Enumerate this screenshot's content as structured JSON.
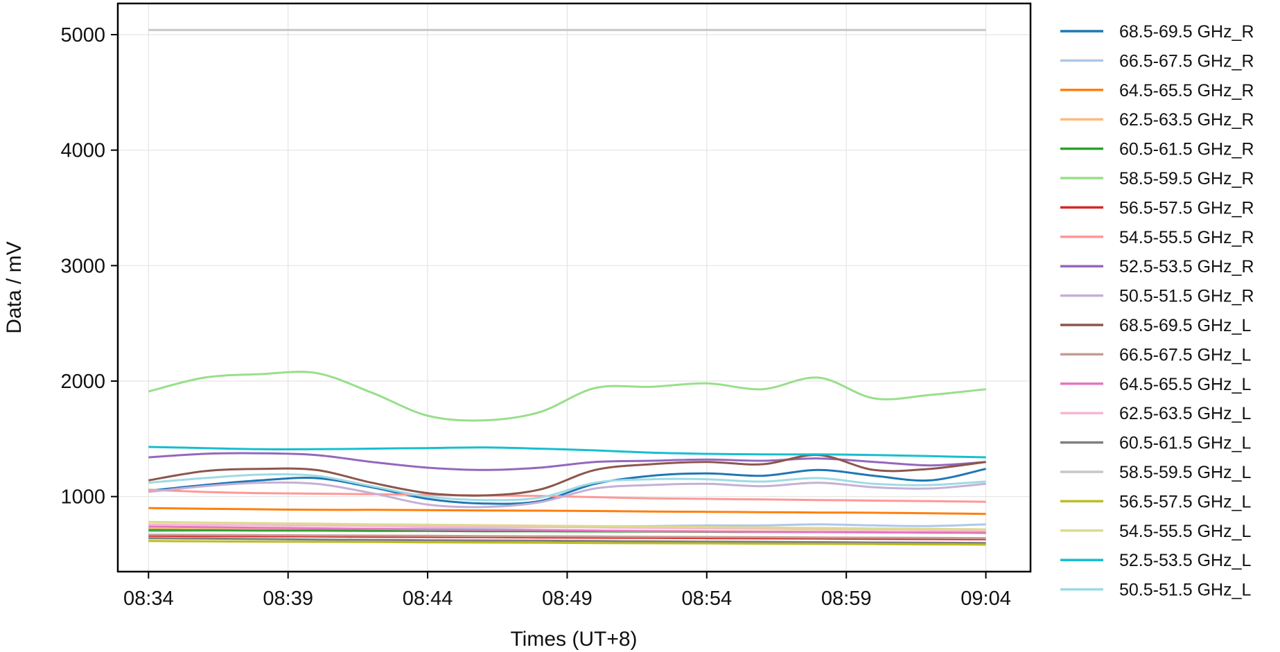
{
  "chart_data": {
    "type": "line",
    "title": "",
    "xlabel": "Times (UT+8)",
    "ylabel": "Data / mV",
    "x_ticks": [
      "08:34",
      "08:39",
      "08:44",
      "08:49",
      "08:54",
      "08:59",
      "09:04"
    ],
    "x_tick_minutes": [
      0,
      5,
      10,
      15,
      20,
      25,
      30
    ],
    "xlim_minutes": [
      -1.1,
      31.6
    ],
    "x": [
      "08:34",
      "08:36",
      "08:38",
      "08:40",
      "08:42",
      "08:44",
      "08:46",
      "08:48",
      "08:50",
      "08:52",
      "08:54",
      "08:56",
      "08:58",
      "09:00",
      "09:02",
      "09:04"
    ],
    "y_ticks": [
      1000,
      2000,
      3000,
      4000,
      5000
    ],
    "ylim": [
      350,
      5270
    ],
    "grid": true,
    "legend_position": "right, outside plot area",
    "series": [
      {
        "name": "68.5-69.5 GHz_R",
        "color": "#1f77b4",
        "values": [
          1050,
          1100,
          1140,
          1160,
          1080,
          980,
          940,
          960,
          1110,
          1180,
          1200,
          1180,
          1230,
          1180,
          1140,
          1240
        ]
      },
      {
        "name": "66.5-67.5 GHz_R",
        "color": "#aec7e8",
        "values": [
          700,
          705,
          710,
          715,
          720,
          725,
          730,
          735,
          740,
          745,
          750,
          750,
          760,
          750,
          745,
          760
        ]
      },
      {
        "name": "64.5-65.5 GHz_R",
        "color": "#ff7f0e",
        "values": [
          900,
          895,
          890,
          885,
          885,
          882,
          880,
          878,
          875,
          870,
          868,
          865,
          862,
          860,
          855,
          850
        ]
      },
      {
        "name": "62.5-63.5 GHz_R",
        "color": "#ffbb78",
        "values": [
          720,
          718,
          716,
          714,
          712,
          710,
          708,
          706,
          704,
          702,
          700,
          698,
          696,
          694,
          692,
          690
        ]
      },
      {
        "name": "60.5-61.5 GHz_R",
        "color": "#2ca02c",
        "values": [
          710,
          708,
          706,
          705,
          703,
          702,
          700,
          699,
          698,
          697,
          695,
          693,
          692,
          690,
          688,
          686
        ]
      },
      {
        "name": "58.5-59.5 GHz_R",
        "color": "#98df8a",
        "values": [
          1910,
          2030,
          2060,
          2070,
          1900,
          1700,
          1660,
          1730,
          1940,
          1950,
          1980,
          1930,
          2030,
          1850,
          1880,
          1930
        ]
      },
      {
        "name": "56.5-57.5 GHz_R",
        "color": "#d62728",
        "values": [
          660,
          658,
          656,
          654,
          652,
          650,
          648,
          646,
          644,
          642,
          640,
          638,
          636,
          634,
          632,
          630
        ]
      },
      {
        "name": "54.5-55.5 GHz_R",
        "color": "#ff9896",
        "values": [
          1060,
          1040,
          1030,
          1025,
          1020,
          1015,
          1010,
          1005,
          995,
          985,
          980,
          975,
          970,
          965,
          960,
          955
        ]
      },
      {
        "name": "52.5-53.5 GHz_R",
        "color": "#9467bd",
        "values": [
          1340,
          1370,
          1375,
          1360,
          1300,
          1250,
          1230,
          1250,
          1300,
          1310,
          1320,
          1310,
          1330,
          1300,
          1270,
          1300
        ]
      },
      {
        "name": "50.5-51.5 GHz_R",
        "color": "#c5b0d5",
        "values": [
          1040,
          1090,
          1120,
          1110,
          1030,
          930,
          910,
          950,
          1070,
          1100,
          1110,
          1090,
          1120,
          1080,
          1070,
          1110
        ]
      },
      {
        "name": "68.5-69.5 GHz_L",
        "color": "#8c564b",
        "values": [
          1140,
          1220,
          1240,
          1230,
          1120,
          1030,
          1010,
          1060,
          1230,
          1280,
          1300,
          1280,
          1360,
          1230,
          1240,
          1300
        ]
      },
      {
        "name": "66.5-67.5 GHz_L",
        "color": "#c49c94",
        "values": [
          670,
          668,
          666,
          664,
          662,
          660,
          658,
          656,
          654,
          652,
          650,
          648,
          646,
          644,
          642,
          640
        ]
      },
      {
        "name": "64.5-65.5 GHz_L",
        "color": "#e377c2",
        "values": [
          740,
          735,
          730,
          725,
          720,
          715,
          712,
          710,
          705,
          700,
          698,
          695,
          692,
          690,
          688,
          685
        ]
      },
      {
        "name": "62.5-63.5 GHz_L",
        "color": "#f7b6d2",
        "values": [
          760,
          755,
          752,
          748,
          745,
          742,
          738,
          735,
          732,
          728,
          725,
          722,
          718,
          715,
          712,
          708
        ]
      },
      {
        "name": "60.5-61.5 GHz_L",
        "color": "#7f7f7f",
        "values": [
          640,
          636,
          632,
          628,
          625,
          622,
          620,
          618,
          615,
          612,
          610,
          608,
          605,
          602,
          600,
          598
        ]
      },
      {
        "name": "58.5-59.5 GHz_L",
        "color": "#c7c7c7",
        "values": [
          5040,
          5040,
          5040,
          5040,
          5040,
          5040,
          5040,
          5040,
          5040,
          5040,
          5040,
          5040,
          5040,
          5040,
          5040,
          5040
        ]
      },
      {
        "name": "56.5-57.5 GHz_L",
        "color": "#bcbd22",
        "values": [
          615,
          612,
          610,
          608,
          606,
          604,
          602,
          600,
          598,
          596,
          594,
          592,
          590,
          588,
          586,
          584
        ]
      },
      {
        "name": "54.5-55.5 GHz_L",
        "color": "#dbdb8d",
        "values": [
          780,
          775,
          770,
          765,
          760,
          756,
          752,
          748,
          744,
          740,
          736,
          732,
          728,
          724,
          720,
          716
        ]
      },
      {
        "name": "52.5-53.5 GHz_L",
        "color": "#17becf",
        "values": [
          1430,
          1420,
          1410,
          1410,
          1415,
          1420,
          1425,
          1415,
          1400,
          1380,
          1370,
          1365,
          1365,
          1360,
          1350,
          1340
        ]
      },
      {
        "name": "50.5-51.5 GHz_L",
        "color": "#9edae5",
        "values": [
          1120,
          1160,
          1190,
          1180,
          1090,
          1000,
          970,
          990,
          1120,
          1150,
          1150,
          1130,
          1160,
          1110,
          1100,
          1130
        ]
      }
    ]
  }
}
